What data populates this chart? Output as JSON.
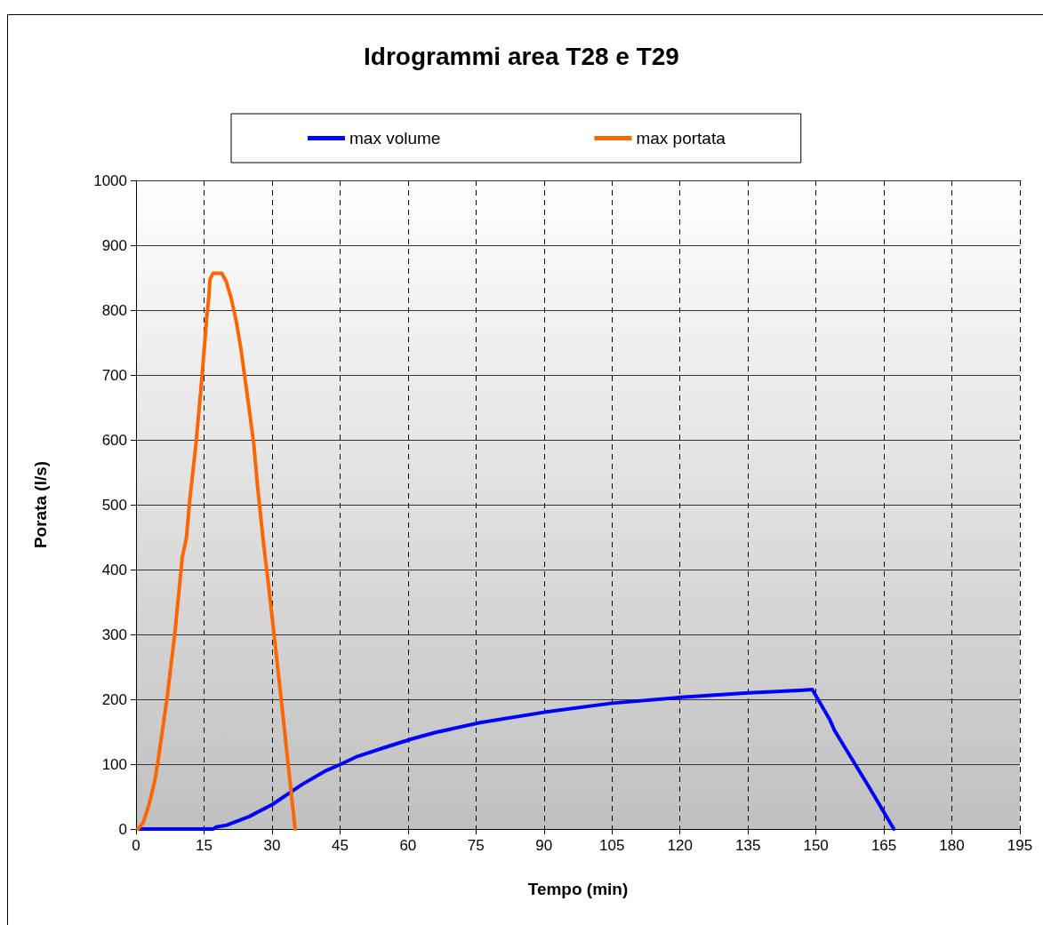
{
  "chart_data": {
    "type": "line",
    "title": "Idrogrammi area T28 e T29",
    "xlabel": "Tempo (min)",
    "ylabel": "Porata (l/s)",
    "series": [
      {
        "name": "max volume",
        "color": "#0000ff",
        "x": [
          0.5,
          17,
          17.7,
          20,
          24.9,
          30.1,
          36.7,
          41.9,
          45.2,
          48.5,
          55,
          60.9,
          66.1,
          75.9,
          90,
          105,
          120.2,
          135.1,
          141.3,
          147,
          149.2,
          153.1,
          154.1,
          161.6,
          167.2
        ],
        "values": [
          0,
          0,
          3,
          6,
          19,
          38,
          69,
          90,
          100,
          111,
          126,
          139,
          149,
          164,
          180,
          194,
          203,
          210,
          212,
          214,
          215,
          168,
          152,
          66,
          0
        ]
      },
      {
        "name": "max portata",
        "color": "#ff6600",
        "x": [
          0.4,
          1.6,
          2.8,
          4.1,
          4.9,
          6.9,
          8.6,
          10.2,
          11.1,
          11.9,
          13.2,
          14.4,
          15.6,
          16.1,
          16.3,
          17,
          18.9,
          19.9,
          21,
          22.1,
          23.1,
          24.7,
          26,
          26.8,
          28.1,
          29.3,
          30.5,
          32.2,
          33.8,
          35.1
        ],
        "values": [
          0,
          10,
          36,
          73,
          107,
          205,
          304,
          419,
          448,
          511,
          592,
          685,
          789,
          823,
          847,
          857,
          857,
          844,
          818,
          783,
          742,
          661,
          592,
          529,
          442,
          372,
          297,
          189,
          84,
          0
        ]
      }
    ],
    "xlim": [
      0,
      195
    ],
    "xticks": [
      0,
      15,
      30,
      45,
      60,
      75,
      90,
      105,
      120,
      135,
      150,
      165,
      180,
      195
    ],
    "ylim": [
      0,
      1000
    ],
    "yticks": [
      0,
      100,
      200,
      300,
      400,
      500,
      600,
      700,
      800,
      900,
      1000
    ],
    "grid": true,
    "legend": "top",
    "marker": "none",
    "line_style": "solid"
  }
}
